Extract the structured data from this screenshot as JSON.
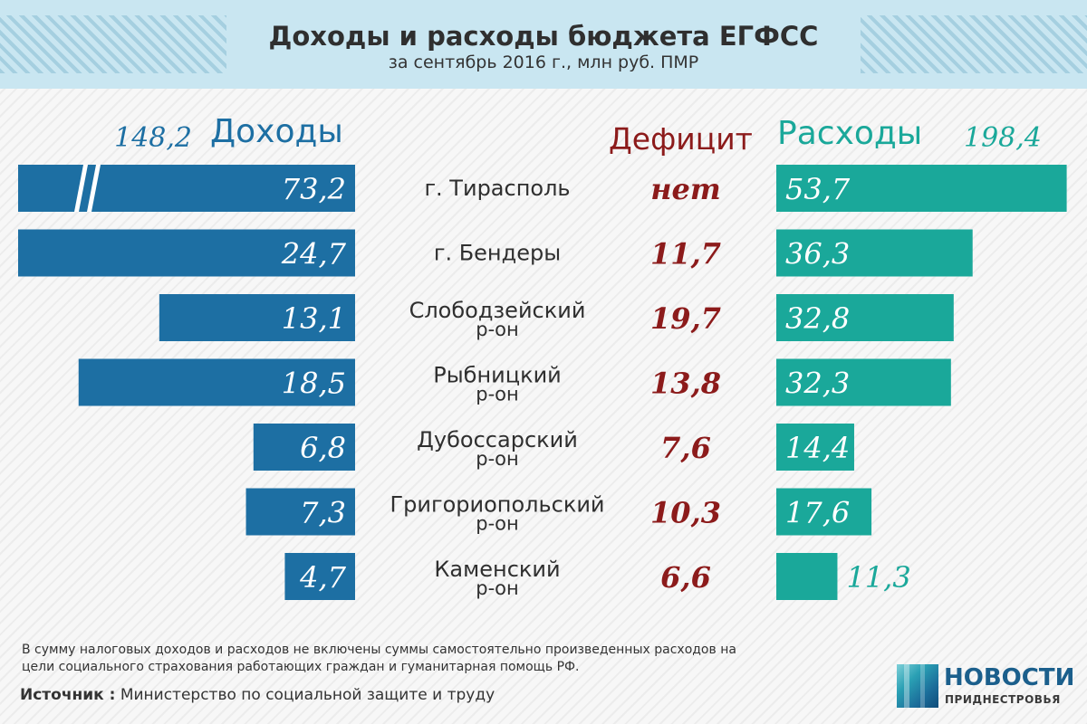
{
  "header": {
    "title": "Доходы и расходы бюджета ЕГФСС",
    "subtitle": "за сентябрь 2016 г., млн руб. ПМР"
  },
  "columns": {
    "income_label": "Доходы",
    "income_total": "148,2",
    "deficit_label": "Дефицит",
    "expense_label": "Расходы",
    "expense_total": "198,4"
  },
  "colors": {
    "income": "#1d6fa3",
    "expense": "#1aa89a",
    "deficit": "#8c1b1b",
    "region_text": "#2f2f2f"
  },
  "chart_data": {
    "type": "bar",
    "title": "Доходы и расходы бюджета ЕГФСС",
    "categories": [
      [
        "г. Тирасполь"
      ],
      [
        "г. Бендеры"
      ],
      [
        "Слободзейский",
        "р-он"
      ],
      [
        "Рыбницкий",
        "р-он"
      ],
      [
        "Дубоссарский",
        "р-он"
      ],
      [
        "Григориопольский",
        "р-он"
      ],
      [
        "Каменский",
        "р-он"
      ]
    ],
    "series": [
      {
        "name": "Доходы",
        "values": [
          73.2,
          24.7,
          13.1,
          18.5,
          6.8,
          7.3,
          4.7
        ],
        "labels": [
          "73,2",
          "24,7",
          "13,1",
          "18,5",
          "6,8",
          "7,3",
          "4,7"
        ],
        "broken_axis": [
          true,
          false,
          false,
          false,
          false,
          false,
          false
        ]
      },
      {
        "name": "Дефицит",
        "values": [
          null,
          11.7,
          19.7,
          13.8,
          7.6,
          10.3,
          6.6
        ],
        "labels": [
          "нет",
          "11,7",
          "19,7",
          "13,8",
          "7,6",
          "10,3",
          "6,6"
        ]
      },
      {
        "name": "Расходы",
        "values": [
          53.7,
          36.3,
          32.8,
          32.3,
          14.4,
          17.6,
          11.3
        ],
        "labels": [
          "53,7",
          "36,3",
          "32,8",
          "32,3",
          "14,4",
          "17,6",
          "11,3"
        ]
      }
    ],
    "totals": {
      "Доходы": 148.2,
      "Расходы": 198.4
    }
  },
  "footnote": "В сумму налоговых доходов и расходов не включены суммы самостоятельно произведенных расходов на цели социального страхования работающих граждан и гуманитарная помощь РФ.",
  "source": {
    "label": "Источник :",
    "text": " Министерство по социальной защите и труду"
  },
  "logo": {
    "main": "НОВОСТИ",
    "sub": "ПРИДНЕСТРОВЬЯ",
    "icon": "news-logo-icon"
  }
}
